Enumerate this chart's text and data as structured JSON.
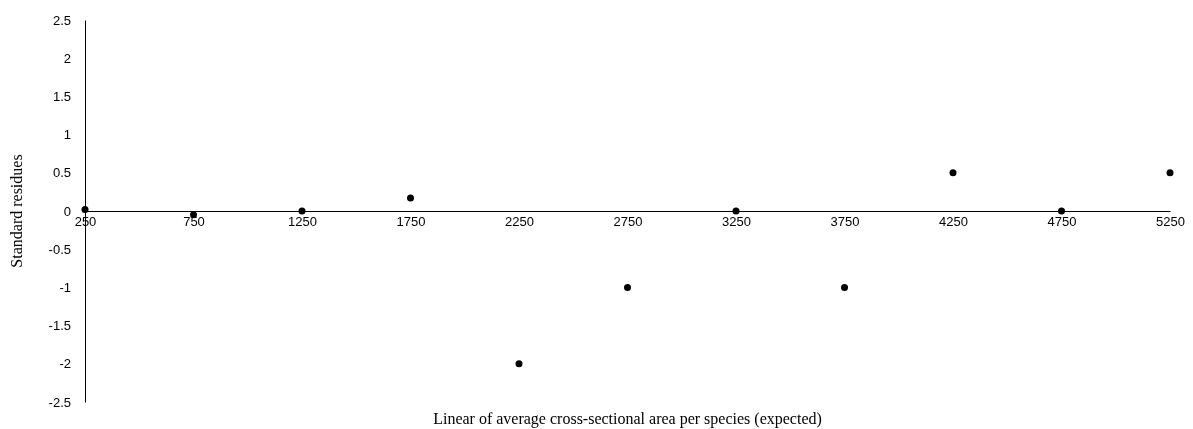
{
  "chart_data": {
    "type": "scatter",
    "xlabel": "Linear of average cross-sectional area per species (expected)",
    "ylabel": "Standard residues",
    "x": [
      250,
      750,
      1250,
      1750,
      2250,
      2750,
      3250,
      3750,
      4250,
      4750,
      5250
    ],
    "series": [
      {
        "color": "#000000",
        "values": [
          0.02,
          -0.05,
          0,
          0.17,
          -2,
          -1,
          0,
          -1,
          0.5,
          0,
          0.5
        ]
      }
    ],
    "xlim": [
      250,
      5250
    ],
    "xticks": [
      250,
      750,
      1250,
      1750,
      2250,
      2750,
      3250,
      3750,
      4250,
      4750,
      5250
    ],
    "ylim": [
      -2.5,
      2.5
    ],
    "yticks": [
      -2.5,
      -2,
      -1.5,
      -1,
      -0.5,
      0,
      0.5,
      1,
      1.5,
      2,
      2.5
    ],
    "marker": "circle"
  }
}
